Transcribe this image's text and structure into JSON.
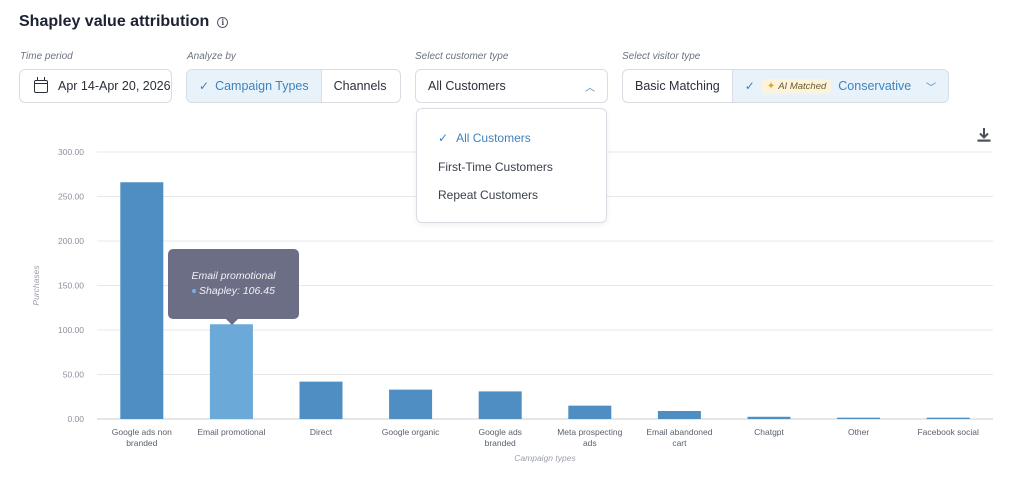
{
  "header": {
    "title": "Shapley value attribution",
    "info_icon": "i"
  },
  "controls": {
    "time_period": {
      "label": "Time period",
      "value": "Apr 14-Apr 20, 2026"
    },
    "analyze_by": {
      "label": "Analyze by",
      "options": [
        "Campaign Types",
        "Channels"
      ],
      "selected": "Campaign Types"
    },
    "customer_type": {
      "label": "Select customer type",
      "value": "All Customers",
      "options": [
        "All Customers",
        "First-Time Customers",
        "Repeat Customers"
      ]
    },
    "visitor_type": {
      "label": "Select visitor type",
      "basic": "Basic Matching",
      "ai_chip": "AI Matched",
      "ai_mode": "Conservative"
    }
  },
  "tooltip": {
    "title": "Email promotional",
    "label": "Shapley: 106.45"
  },
  "colors": {
    "bar": "#4f8ec2",
    "bar_highlight": "#6aa9d8",
    "accent": "#3f82bd"
  },
  "chart_data": {
    "type": "bar",
    "categories": [
      "Google ads non branded",
      "Email promotional",
      "Direct",
      "Google organic",
      "Google ads branded",
      "Meta prospecting ads",
      "Email abandoned cart",
      "Chatgpt",
      "Other",
      "Facebook social"
    ],
    "category_lines": [
      [
        "Google ads non",
        "branded"
      ],
      [
        "Email promotional"
      ],
      [
        "Direct"
      ],
      [
        "Google organic"
      ],
      [
        "Google ads",
        "branded"
      ],
      [
        "Meta prospecting",
        "ads"
      ],
      [
        "Email abandoned",
        "cart"
      ],
      [
        "Chatgpt"
      ],
      [
        "Other"
      ],
      [
        "Facebook social"
      ]
    ],
    "values": [
      266,
      106.45,
      42,
      33,
      31,
      15,
      9,
      2.5,
      1.5,
      1.5
    ],
    "highlight_index": 1,
    "xlabel": "Campaign types",
    "ylabel": "Purchases",
    "ylim": [
      0,
      300
    ],
    "yticks": [
      "0.00",
      "50.00",
      "100.00",
      "150.00",
      "200.00",
      "250.00",
      "300.00"
    ],
    "ytick_values": [
      0,
      50,
      100,
      150,
      200,
      250,
      300
    ],
    "grid": true
  }
}
